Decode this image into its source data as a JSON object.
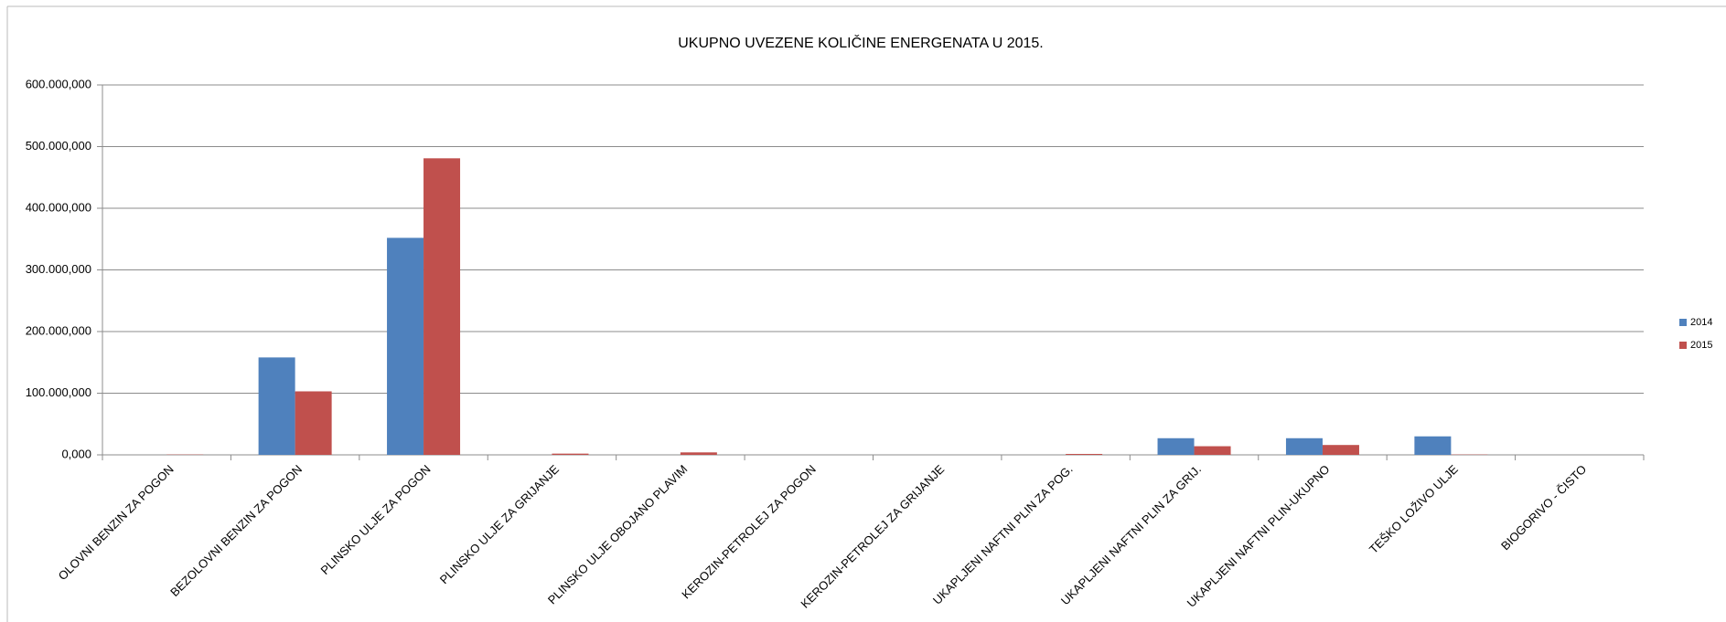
{
  "chart_data": {
    "type": "bar",
    "title": "UKUPNO UVEZENE KOLIČINE ENERGENATA  U 2015.",
    "categories": [
      "OLOVNI BENZIN ZA POGON",
      "BEZOLOVNI BENZIN ZA POGON",
      "PLINSKO ULJE ZA POGON",
      "PLINSKO ULJE ZA GRIJANJE",
      "PLINSKO ULJE OBOJANO PLAVIM",
      "KEROZIN-PETROLEJ ZA POGON",
      "KEROZIN-PETROLEJ ZA GRIJANJE",
      "UKAPLJENI NAFTNI PLIN ZA POG.",
      "UKAPLJENI NAFTNI PLIN ZA GRIJ.",
      "UKAPLJENI NAFTNI PLIN-UKUPNO",
      "TEŠKO LOŽIVO ULJE",
      "BIOGORIVO - ČISTO"
    ],
    "series": [
      {
        "name": "2014",
        "color": "#4f81bd",
        "values": [
          0,
          158000000,
          352000000,
          0,
          0,
          0,
          0,
          0,
          27000000,
          27000000,
          30000000,
          0
        ]
      },
      {
        "name": "2015",
        "color": "#c0504d",
        "values": [
          500000,
          103000000,
          481000000,
          2000000,
          4000000,
          0,
          0,
          1500000,
          14000000,
          16000000,
          500000,
          0
        ]
      }
    ],
    "ylim": [
      0,
      600000000
    ],
    "yticks": [
      {
        "value": 0,
        "label": "0,000"
      },
      {
        "value": 100000000,
        "label": "100.000,000"
      },
      {
        "value": 200000000,
        "label": "200.000,000"
      },
      {
        "value": 300000000,
        "label": "300.000,000"
      },
      {
        "value": 400000000,
        "label": "400.000,000"
      },
      {
        "value": 500000000,
        "label": "500.000,000"
      },
      {
        "value": 600000000,
        "label": "600.000,000"
      }
    ],
    "grid": true,
    "legend": "right"
  }
}
